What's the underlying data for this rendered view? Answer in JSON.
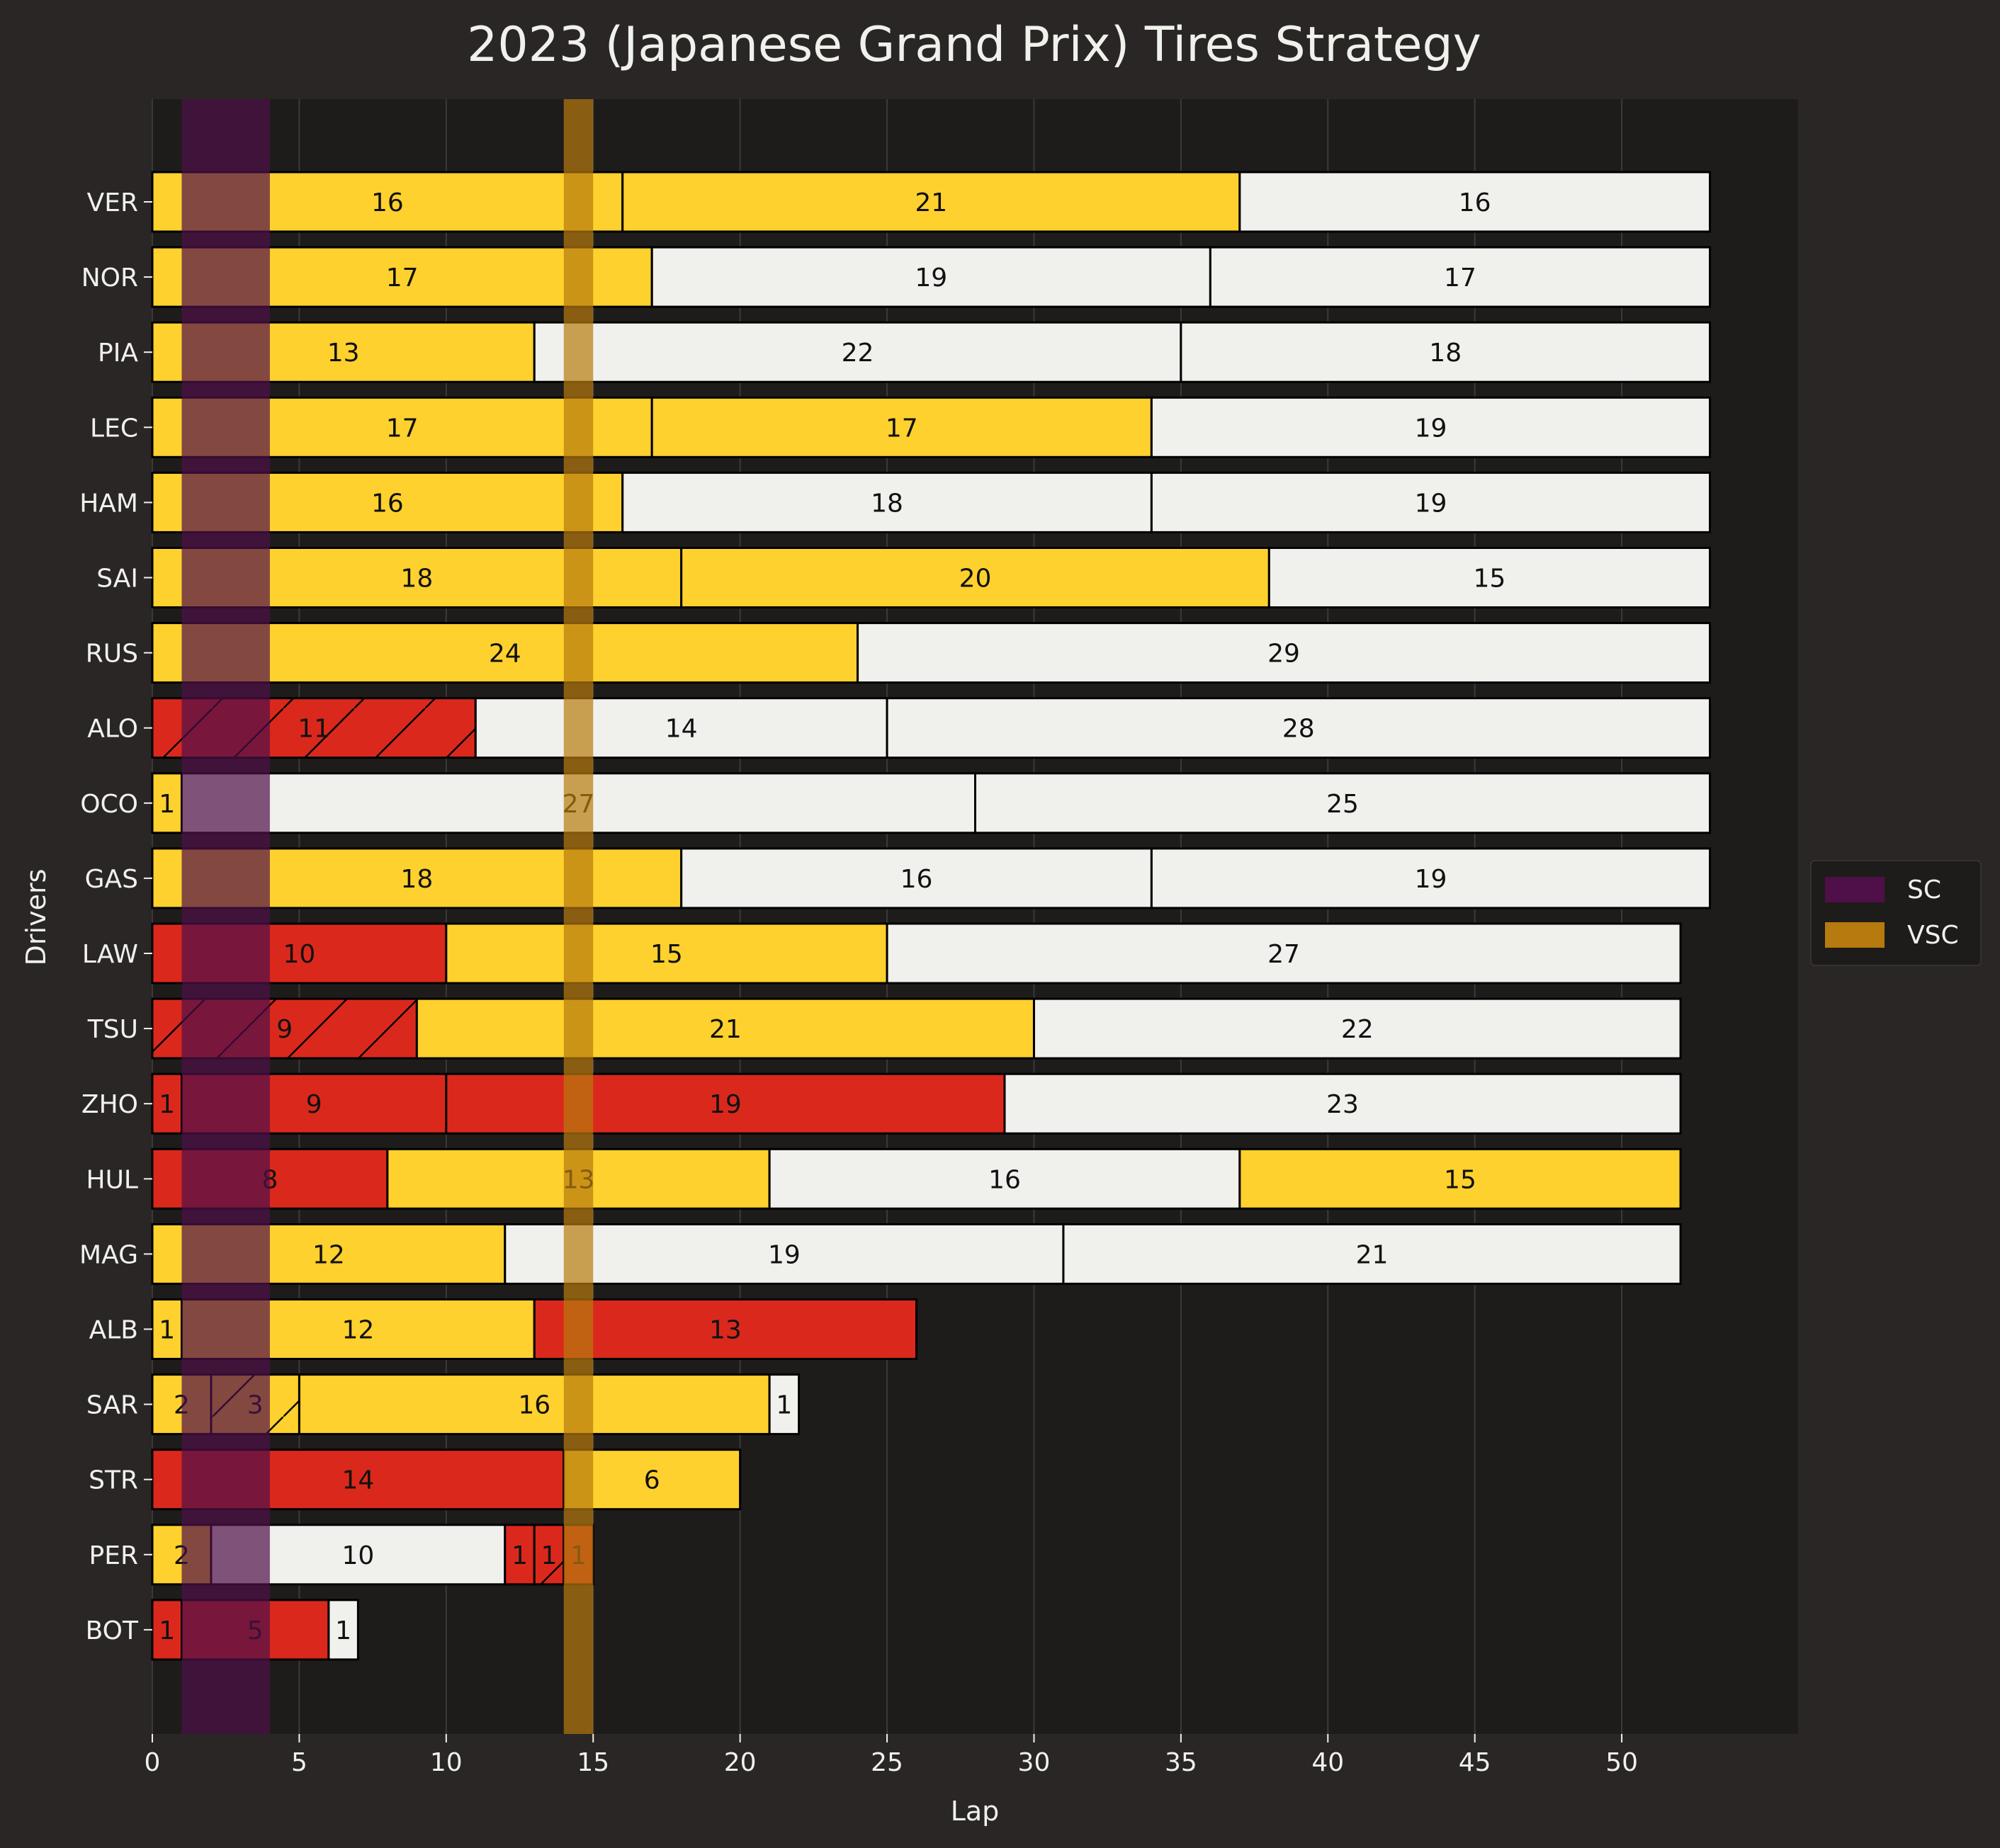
{
  "chart_data": {
    "type": "bar",
    "orientation": "horizontal-stacked",
    "title": "2023 (Japanese Grand Prix) Tires Strategy",
    "xlabel": "Lap",
    "ylabel": "Drivers",
    "xlim": [
      0,
      56
    ],
    "xticks": [
      0,
      5,
      10,
      15,
      20,
      25,
      30,
      35,
      40,
      45,
      50
    ],
    "grid": "vertical",
    "legend_position": "right",
    "colors": {
      "SOFT": "#da291c",
      "MEDIUM": "#ffd12e",
      "HARD": "#f0f0ec",
      "SC": "#4f0f48",
      "VSC": "#b77a0e",
      "background": "#292625",
      "plot_background": "#1e1c1b",
      "grid": "#3c3a39",
      "text": "#f1f1ec"
    },
    "legend": [
      {
        "name": "SC",
        "color": "#4f0f48"
      },
      {
        "name": "VSC",
        "color": "#b77a0e"
      }
    ],
    "safety_periods": [
      {
        "type": "SC",
        "start": 1,
        "end": 4
      },
      {
        "type": "VSC",
        "start": 14,
        "end": 15
      }
    ],
    "drivers": [
      {
        "driver": "VER",
        "stints": [
          {
            "compound": "MEDIUM",
            "laps": 16
          },
          {
            "compound": "MEDIUM",
            "laps": 21
          },
          {
            "compound": "HARD",
            "laps": 16
          }
        ]
      },
      {
        "driver": "NOR",
        "stints": [
          {
            "compound": "MEDIUM",
            "laps": 17
          },
          {
            "compound": "HARD",
            "laps": 19
          },
          {
            "compound": "HARD",
            "laps": 17
          }
        ]
      },
      {
        "driver": "PIA",
        "stints": [
          {
            "compound": "MEDIUM",
            "laps": 13
          },
          {
            "compound": "HARD",
            "laps": 22
          },
          {
            "compound": "HARD",
            "laps": 18
          }
        ]
      },
      {
        "driver": "LEC",
        "stints": [
          {
            "compound": "MEDIUM",
            "laps": 17
          },
          {
            "compound": "MEDIUM",
            "laps": 17
          },
          {
            "compound": "HARD",
            "laps": 19
          }
        ]
      },
      {
        "driver": "HAM",
        "stints": [
          {
            "compound": "MEDIUM",
            "laps": 16
          },
          {
            "compound": "HARD",
            "laps": 18
          },
          {
            "compound": "HARD",
            "laps": 19
          }
        ]
      },
      {
        "driver": "SAI",
        "stints": [
          {
            "compound": "MEDIUM",
            "laps": 18
          },
          {
            "compound": "MEDIUM",
            "laps": 20
          },
          {
            "compound": "HARD",
            "laps": 15
          }
        ]
      },
      {
        "driver": "RUS",
        "stints": [
          {
            "compound": "MEDIUM",
            "laps": 24
          },
          {
            "compound": "HARD",
            "laps": 29
          }
        ]
      },
      {
        "driver": "ALO",
        "stints": [
          {
            "compound": "SOFT",
            "laps": 11,
            "used": true
          },
          {
            "compound": "HARD",
            "laps": 14
          },
          {
            "compound": "HARD",
            "laps": 28
          }
        ]
      },
      {
        "driver": "OCO",
        "stints": [
          {
            "compound": "MEDIUM",
            "laps": 1
          },
          {
            "compound": "HARD",
            "laps": 27
          },
          {
            "compound": "HARD",
            "laps": 25
          }
        ]
      },
      {
        "driver": "GAS",
        "stints": [
          {
            "compound": "MEDIUM",
            "laps": 18
          },
          {
            "compound": "HARD",
            "laps": 16
          },
          {
            "compound": "HARD",
            "laps": 19
          }
        ]
      },
      {
        "driver": "LAW",
        "stints": [
          {
            "compound": "SOFT",
            "laps": 10
          },
          {
            "compound": "MEDIUM",
            "laps": 15
          },
          {
            "compound": "HARD",
            "laps": 27
          }
        ]
      },
      {
        "driver": "TSU",
        "stints": [
          {
            "compound": "SOFT",
            "laps": 9,
            "used": true
          },
          {
            "compound": "MEDIUM",
            "laps": 21
          },
          {
            "compound": "HARD",
            "laps": 22
          }
        ]
      },
      {
        "driver": "ZHO",
        "stints": [
          {
            "compound": "SOFT",
            "laps": 1
          },
          {
            "compound": "SOFT",
            "laps": 9
          },
          {
            "compound": "SOFT",
            "laps": 19
          },
          {
            "compound": "HARD",
            "laps": 23
          }
        ]
      },
      {
        "driver": "HUL",
        "stints": [
          {
            "compound": "SOFT",
            "laps": 8
          },
          {
            "compound": "MEDIUM",
            "laps": 13
          },
          {
            "compound": "HARD",
            "laps": 16
          },
          {
            "compound": "MEDIUM",
            "laps": 15
          }
        ]
      },
      {
        "driver": "MAG",
        "stints": [
          {
            "compound": "MEDIUM",
            "laps": 12
          },
          {
            "compound": "HARD",
            "laps": 19
          },
          {
            "compound": "HARD",
            "laps": 21
          }
        ]
      },
      {
        "driver": "ALB",
        "stints": [
          {
            "compound": "MEDIUM",
            "laps": 1
          },
          {
            "compound": "MEDIUM",
            "laps": 12
          },
          {
            "compound": "SOFT",
            "laps": 13
          }
        ]
      },
      {
        "driver": "SAR",
        "stints": [
          {
            "compound": "MEDIUM",
            "laps": 2
          },
          {
            "compound": "MEDIUM",
            "laps": 3,
            "used": true
          },
          {
            "compound": "MEDIUM",
            "laps": 16
          },
          {
            "compound": "HARD",
            "laps": 1
          }
        ]
      },
      {
        "driver": "STR",
        "stints": [
          {
            "compound": "SOFT",
            "laps": 14
          },
          {
            "compound": "MEDIUM",
            "laps": 6
          }
        ]
      },
      {
        "driver": "PER",
        "stints": [
          {
            "compound": "MEDIUM",
            "laps": 2
          },
          {
            "compound": "HARD",
            "laps": 10
          },
          {
            "compound": "SOFT",
            "laps": 1
          },
          {
            "compound": "SOFT",
            "laps": 1,
            "used": true
          },
          {
            "compound": "SOFT",
            "laps": 1
          }
        ]
      },
      {
        "driver": "BOT",
        "stints": [
          {
            "compound": "SOFT",
            "laps": 1
          },
          {
            "compound": "SOFT",
            "laps": 5
          },
          {
            "compound": "HARD",
            "laps": 1
          }
        ]
      }
    ]
  }
}
